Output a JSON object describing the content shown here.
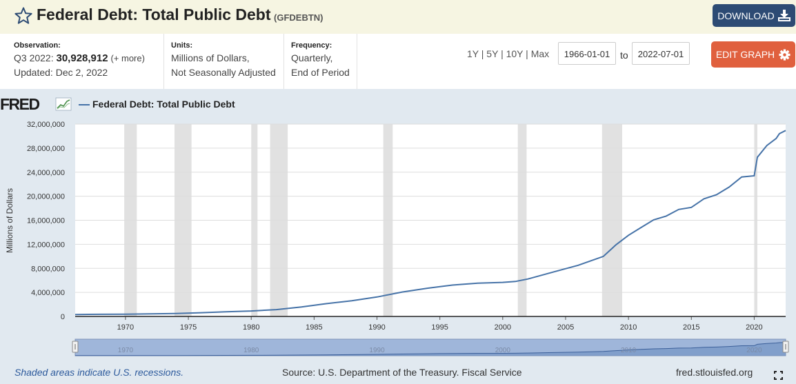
{
  "header": {
    "title": "Federal Debt: Total Public Debt",
    "series_id": "(GFDEBTN)",
    "download_label": "DOWNLOAD"
  },
  "info": {
    "observation_label": "Observation:",
    "observation_period": "Q3 2022:",
    "observation_value": "30,928,912",
    "observation_more": "(+ more)",
    "updated": "Updated: Dec 2, 2022",
    "units_label": "Units:",
    "units_line1": "Millions of Dollars,",
    "units_line2": "Not Seasonally Adjusted",
    "frequency_label": "Frequency:",
    "frequency_line1": "Quarterly,",
    "frequency_line2": "End of Period"
  },
  "controls": {
    "range_1y": "1Y",
    "range_5y": "5Y",
    "range_10y": "10Y",
    "range_max": "Max",
    "separator": "|",
    "start_date": "1966-01-01",
    "to_label": "to",
    "end_date": "2022-07-01",
    "edit_label": "EDIT GRAPH"
  },
  "graph": {
    "logo_text": "FRED",
    "legend": "Federal Debt: Total Public Debt"
  },
  "footer": {
    "note": "Shaded areas indicate U.S. recessions.",
    "source": "Source: U.S. Department of the Treasury. Fiscal Service",
    "site": "fred.stlouisfed.org"
  },
  "colors": {
    "series": "#4572a7",
    "recession": "#e1e1e1",
    "title_bar": "#f6f5e2",
    "download": "#2d4b74",
    "edit": "#e0603e",
    "graph_bg": "#e1e9f0"
  },
  "chart_data": {
    "type": "line",
    "title": "Federal Debt: Total Public Debt",
    "xlabel": "",
    "ylabel": "Millions of Dollars",
    "xlim": [
      1966.0,
      2022.5
    ],
    "ylim": [
      0,
      32000000
    ],
    "x_ticks": [
      1970,
      1975,
      1980,
      1985,
      1990,
      1995,
      2000,
      2005,
      2010,
      2015,
      2020
    ],
    "y_ticks": [
      0,
      4000000,
      8000000,
      12000000,
      16000000,
      20000000,
      24000000,
      28000000,
      32000000
    ],
    "y_tick_labels": [
      "0",
      "4,000,000",
      "8,000,000",
      "12,000,000",
      "16,000,000",
      "20,000,000",
      "24,000,000",
      "28,000,000",
      "32,000,000"
    ],
    "navigator_ticks": [
      1970,
      1980,
      1990,
      2000,
      2010,
      2020
    ],
    "recessions": [
      [
        1969.9,
        1970.9
      ],
      [
        1973.9,
        1975.25
      ],
      [
        1980.0,
        1980.5
      ],
      [
        1981.5,
        1982.9
      ],
      [
        1990.5,
        1991.25
      ],
      [
        2001.2,
        2001.9
      ],
      [
        2007.9,
        2009.5
      ],
      [
        2020.0,
        2020.25
      ]
    ],
    "series": [
      {
        "name": "Federal Debt: Total Public Debt",
        "x": [
          1966.0,
          1968,
          1970,
          1972,
          1974,
          1976,
          1978,
          1980,
          1982,
          1984,
          1986,
          1988,
          1990,
          1992,
          1994,
          1996,
          1998,
          2000,
          2001,
          2002,
          2004,
          2006,
          2008,
          2009,
          2010,
          2011,
          2012,
          2013,
          2014,
          2015,
          2016,
          2017,
          2018,
          2019,
          2020.0,
          2020.25,
          2021,
          2021.75,
          2022,
          2022.5
        ],
        "values": [
          320000,
          350000,
          380000,
          430000,
          480000,
          620000,
          780000,
          910000,
          1140000,
          1570000,
          2130000,
          2600000,
          3230000,
          4060000,
          4690000,
          5220000,
          5530000,
          5670000,
          5810000,
          6230000,
          7380000,
          8510000,
          9990000,
          11900000,
          13500000,
          14800000,
          16070000,
          16700000,
          17800000,
          18150000,
          19570000,
          20240000,
          21520000,
          23200000,
          23400000,
          26480000,
          28430000,
          29620000,
          30400000,
          30928912
        ]
      }
    ]
  }
}
